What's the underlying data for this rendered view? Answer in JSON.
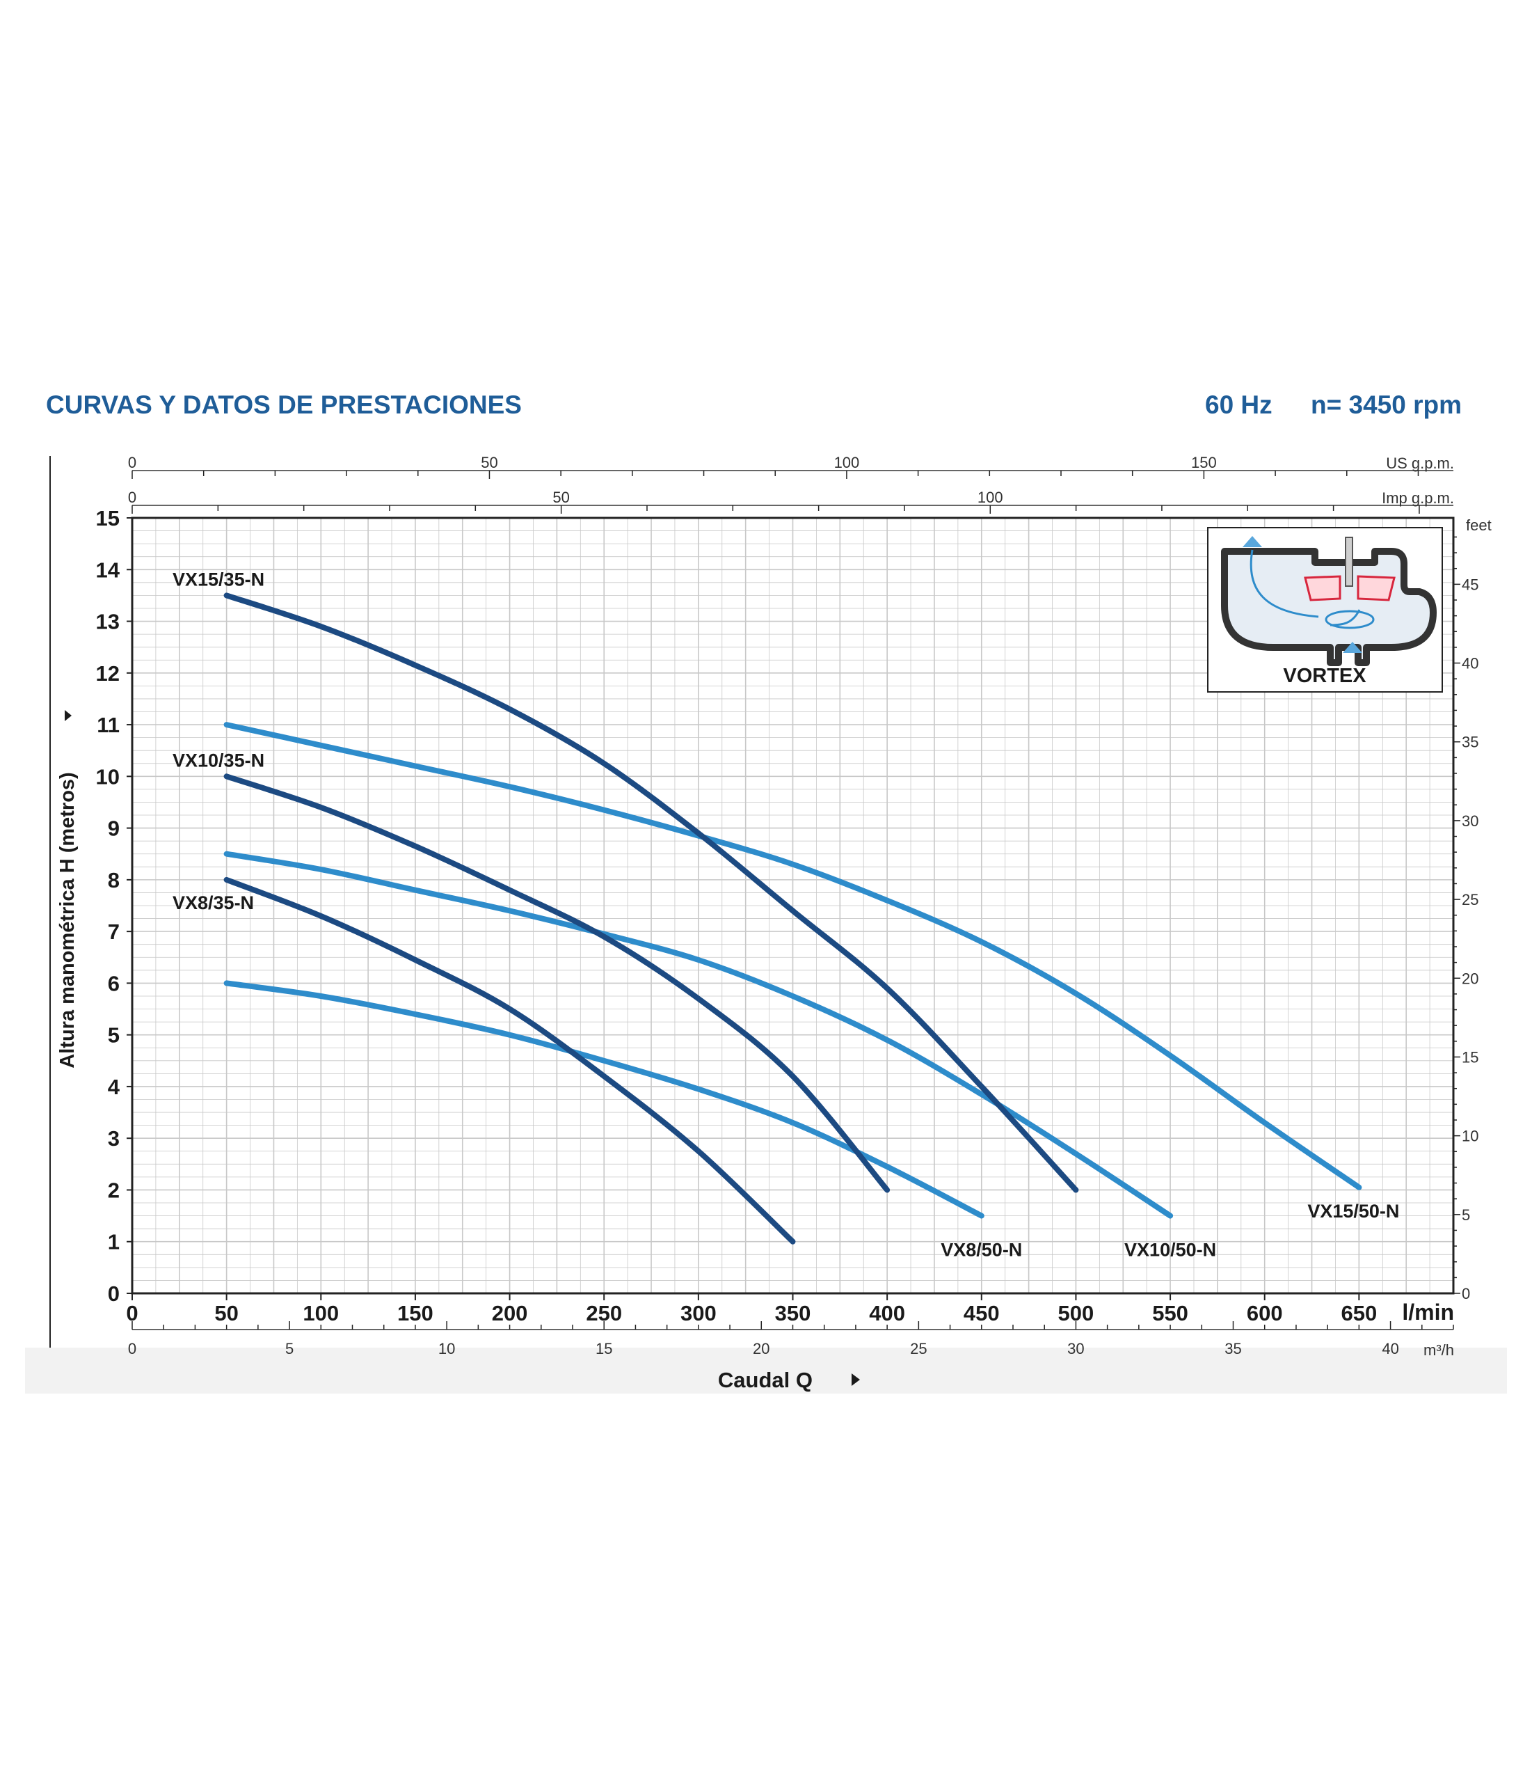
{
  "header": {
    "title": "CURVAS Y DATOS DE PRESTACIONES",
    "frequency": "60 Hz",
    "speed": "n= 3450 rpm"
  },
  "colors": {
    "title": "#1f5d98",
    "dark_series": "#1c4a82",
    "light_series": "#2e8ccb",
    "grid": "#c8c8c8",
    "axis": "#222222"
  },
  "inset": {
    "label": "VORTEX",
    "icon": "vortex-impeller-diagram"
  },
  "chart_data": {
    "type": "line",
    "x_primary": {
      "label": "l/min",
      "range": [
        0,
        700
      ],
      "ticks": [
        0,
        50,
        100,
        150,
        200,
        250,
        300,
        350,
        400,
        450,
        500,
        550,
        600,
        650
      ]
    },
    "y_primary": {
      "label": "Altura manométrica H (metros)",
      "range": [
        0,
        15
      ],
      "ticks": [
        0,
        1,
        2,
        3,
        4,
        5,
        6,
        7,
        8,
        9,
        10,
        11,
        12,
        13,
        14,
        15
      ]
    },
    "y_secondary": {
      "label": "feet",
      "ticks": [
        0,
        5,
        10,
        15,
        20,
        25,
        30,
        35,
        40,
        45
      ]
    },
    "x_top_us": {
      "label": "US g.p.m.",
      "ticks": [
        0,
        50,
        100,
        150
      ]
    },
    "x_top_imp": {
      "label": "Imp g.p.m.",
      "ticks": [
        0,
        50,
        100
      ]
    },
    "x_bottom_m3h": {
      "label": "m³/h",
      "ticks": [
        0,
        5,
        10,
        15,
        20,
        25,
        30,
        35,
        40
      ]
    },
    "x_title": "Caudal Q",
    "series": [
      {
        "name": "VX15/35-N",
        "tone": "dark",
        "x": [
          50,
          100,
          150,
          200,
          250,
          300,
          350,
          400,
          450,
          500
        ],
        "y": [
          13.5,
          12.9,
          12.15,
          11.3,
          10.25,
          8.9,
          7.4,
          5.9,
          4.0,
          2.0
        ]
      },
      {
        "name": "VX10/35-N",
        "tone": "dark",
        "x": [
          50,
          100,
          150,
          200,
          250,
          300,
          350,
          400
        ],
        "y": [
          10.0,
          9.4,
          8.65,
          7.8,
          6.9,
          5.7,
          4.2,
          2.0
        ]
      },
      {
        "name": "VX8/35-N",
        "tone": "dark",
        "x": [
          50,
          100,
          150,
          200,
          250,
          300,
          350
        ],
        "y": [
          8.0,
          7.3,
          6.45,
          5.5,
          4.2,
          2.75,
          1.0
        ]
      },
      {
        "name": "VX15/50-N",
        "tone": "light",
        "x": [
          50,
          100,
          150,
          200,
          250,
          300,
          350,
          400,
          450,
          500,
          550,
          600,
          650
        ],
        "y": [
          11.0,
          10.6,
          10.2,
          9.8,
          9.35,
          8.85,
          8.3,
          7.6,
          6.8,
          5.8,
          4.6,
          3.3,
          2.05
        ]
      },
      {
        "name": "VX10/50-N",
        "tone": "light",
        "x": [
          50,
          100,
          150,
          200,
          250,
          300,
          350,
          400,
          450,
          500,
          550
        ],
        "y": [
          8.5,
          8.2,
          7.8,
          7.4,
          6.95,
          6.45,
          5.75,
          4.9,
          3.85,
          2.7,
          1.5
        ]
      },
      {
        "name": "VX8/50-N",
        "tone": "light",
        "x": [
          50,
          100,
          150,
          200,
          250,
          300,
          350,
          400,
          450
        ],
        "y": [
          6.0,
          5.75,
          5.4,
          5.0,
          4.5,
          3.95,
          3.3,
          2.45,
          1.5
        ]
      }
    ]
  }
}
